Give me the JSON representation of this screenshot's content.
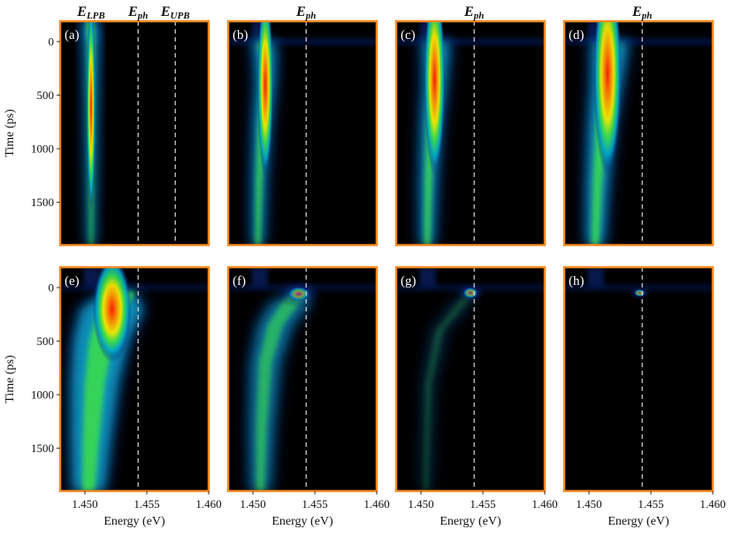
{
  "chart_data": {
    "type": "heatmap",
    "layout": "2x4 panel grid",
    "xlabel": "Energy (eV)",
    "ylabel": "Time (ps)",
    "xlim": [
      1.448,
      1.46
    ],
    "ylim": [
      -190,
      1900
    ],
    "xticks": [
      "1.450",
      "1.455",
      "1.460"
    ],
    "xtick_values": [
      1.45,
      1.455,
      1.46
    ],
    "yticks": [
      "0",
      "500",
      "1000",
      "1500"
    ],
    "ytick_values": [
      0,
      500,
      1000,
      1500
    ],
    "colors": {
      "frame": "#f08a24",
      "background": "#000000",
      "dashed": "#dddddd"
    },
    "headers": [
      {
        "text": "E",
        "sub": "LPB",
        "energy": 1.4505
      },
      {
        "text": "E",
        "sub": "ph",
        "energy": 1.4543
      },
      {
        "text": "E",
        "sub": "UPB",
        "energy": 1.4573
      },
      {
        "text": "E",
        "sub": "ph",
        "energy": 1.4543
      },
      {
        "text": "E",
        "sub": "ph",
        "energy": 1.4543
      },
      {
        "text": "E",
        "sub": "ph",
        "energy": 1.4543
      }
    ],
    "panels": [
      {
        "label": "(a)",
        "row": 0,
        "col": 0,
        "dashed_lines": [
          1.4543,
          1.4573
        ],
        "ridge": [
          [
            -190,
            1.4504
          ],
          [
            0,
            1.4505
          ],
          [
            300,
            1.4505
          ],
          [
            700,
            1.4505
          ],
          [
            1200,
            1.4505
          ],
          [
            1900,
            1.4505
          ]
        ],
        "peak_time": 600,
        "peak_energy": 1.4505,
        "pattern": "narrow vertical band"
      },
      {
        "label": "(b)",
        "row": 0,
        "col": 1,
        "dashed_lines": [
          1.4543
        ],
        "ridge": [
          [
            0,
            1.4508
          ],
          [
            150,
            1.451
          ],
          [
            400,
            1.451
          ],
          [
            800,
            1.4507
          ],
          [
            1300,
            1.4505
          ],
          [
            1900,
            1.4504
          ]
        ],
        "peak_time": 400,
        "peak_energy": 1.451,
        "pattern": "tapering band"
      },
      {
        "label": "(c)",
        "row": 0,
        "col": 2,
        "dashed_lines": [
          1.4543
        ],
        "ridge": [
          [
            0,
            1.4512
          ],
          [
            150,
            1.4512
          ],
          [
            400,
            1.4511
          ],
          [
            800,
            1.4508
          ],
          [
            1300,
            1.4506
          ],
          [
            1900,
            1.4505
          ]
        ],
        "peak_time": 350,
        "peak_energy": 1.4511,
        "pattern": "tapering band"
      },
      {
        "label": "(d)",
        "row": 0,
        "col": 3,
        "dashed_lines": [
          1.4543
        ],
        "ridge": [
          [
            0,
            1.4517
          ],
          [
            150,
            1.4516
          ],
          [
            400,
            1.4514
          ],
          [
            800,
            1.451
          ],
          [
            1300,
            1.4507
          ],
          [
            1900,
            1.4505
          ]
        ],
        "peak_time": 300,
        "peak_energy": 1.4515,
        "pattern": "broad tapering band"
      },
      {
        "label": "(e)",
        "row": 1,
        "col": 0,
        "dashed_lines": [
          1.4543
        ],
        "ridge": [
          [
            40,
            1.4528
          ],
          [
            200,
            1.4522
          ],
          [
            500,
            1.4513
          ],
          [
            900,
            1.4508
          ],
          [
            1400,
            1.4505
          ],
          [
            1900,
            1.4503
          ]
        ],
        "peak_time": 200,
        "peak_energy": 1.4522,
        "pattern": "bright triangle emission"
      },
      {
        "label": "(f)",
        "row": 1,
        "col": 1,
        "dashed_lines": [
          1.4543
        ],
        "ridge": [
          [
            60,
            1.4538
          ],
          [
            150,
            1.453
          ],
          [
            350,
            1.4518
          ],
          [
            700,
            1.451
          ],
          [
            1300,
            1.4507
          ],
          [
            1900,
            1.4506
          ]
        ],
        "peak_time": 60,
        "peak_energy": 1.4537,
        "pattern": "hotspot with decaying tail"
      },
      {
        "label": "(g)",
        "row": 1,
        "col": 2,
        "dashed_lines": [
          1.4543
        ],
        "ridge": [
          [
            50,
            1.454
          ],
          [
            120,
            1.4535
          ],
          [
            400,
            1.4515
          ],
          [
            900,
            1.4506
          ],
          [
            1900,
            1.4504
          ]
        ],
        "peak_time": 50,
        "peak_energy": 1.454,
        "pattern": "isolated hotspot"
      },
      {
        "label": "(h)",
        "row": 1,
        "col": 3,
        "dashed_lines": [
          1.4543
        ],
        "ridge": [
          [
            50,
            1.4541
          ]
        ],
        "peak_time": 50,
        "peak_energy": 1.4541,
        "pattern": "small isolated hotspot"
      }
    ]
  }
}
